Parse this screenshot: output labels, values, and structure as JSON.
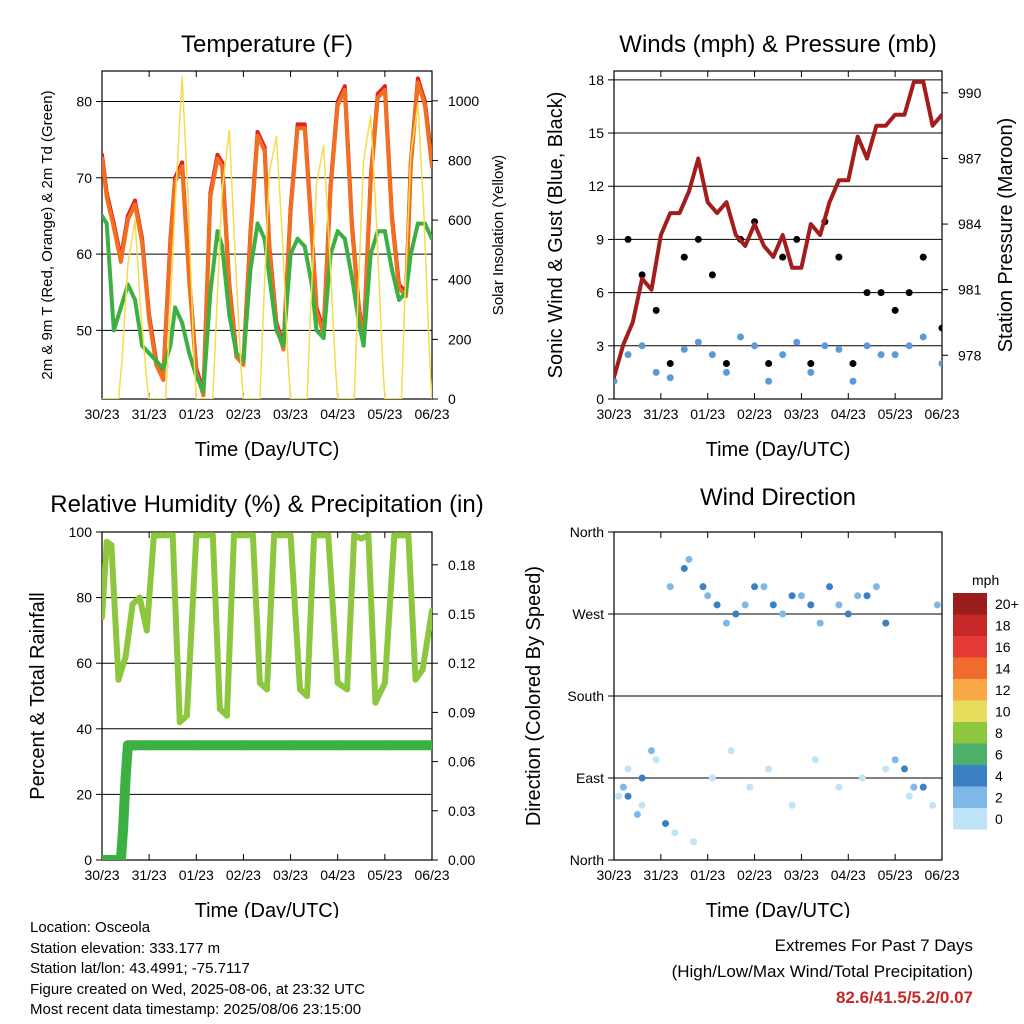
{
  "chart_data": [
    {
      "type": "line",
      "title": "Temperature (F)",
      "xlabel": "Time (Day/UTC)",
      "ylabel": "2m & 9m T (Red, Orange) & 2m Td (Green)",
      "ylabel_right": "Solar Insolation (Yellow)",
      "x_ticks": [
        "30/23",
        "31/23",
        "01/23",
        "02/23",
        "03/23",
        "04/23",
        "05/23",
        "06/23"
      ],
      "ylim": [
        41,
        84
      ],
      "y_ticks": [
        "50",
        "60",
        "70",
        "80"
      ],
      "y_tick_values": [
        50,
        60,
        70,
        80
      ],
      "ylim_right": [
        0,
        1100
      ],
      "y_ticks_right": [
        "0",
        "200",
        "400",
        "600",
        "800",
        "1000"
      ],
      "y_tick_values_right": [
        0,
        200,
        400,
        600,
        800,
        1000
      ],
      "grid": "horizontal",
      "series": [
        {
          "color": "#e02020",
          "x": [
            0,
            0.1,
            0.25,
            0.4,
            0.55,
            0.7,
            0.85,
            1.0,
            1.15,
            1.3,
            1.45,
            1.55,
            1.7,
            1.85,
            2.0,
            2.15,
            2.3,
            2.45,
            2.55,
            2.7,
            2.85,
            3.0,
            3.15,
            3.3,
            3.45,
            3.55,
            3.7,
            3.85,
            4.0,
            4.15,
            4.3,
            4.45,
            4.55,
            4.7,
            4.85,
            5.0,
            5.15,
            5.3,
            5.45,
            5.55,
            5.7,
            5.85,
            6.0,
            6.15,
            6.3,
            6.45,
            6.55,
            6.7,
            6.85,
            7.0
          ],
          "values": [
            73,
            68,
            64,
            59.5,
            65,
            67,
            62,
            52,
            46,
            44,
            62,
            70,
            72,
            57,
            45,
            42,
            68,
            73,
            72,
            56,
            47,
            46,
            63,
            76,
            74,
            61,
            51,
            48,
            66,
            77,
            77,
            63,
            53,
            50,
            69,
            80,
            82,
            64,
            53,
            49,
            70,
            81,
            82,
            65,
            56,
            55,
            72,
            83,
            80,
            72
          ]
        },
        {
          "color": "#f07020",
          "x": [
            0,
            0.1,
            0.25,
            0.4,
            0.55,
            0.7,
            0.85,
            1.0,
            1.15,
            1.3,
            1.45,
            1.55,
            1.7,
            1.85,
            2.0,
            2.15,
            2.3,
            2.45,
            2.55,
            2.7,
            2.85,
            3.0,
            3.15,
            3.3,
            3.45,
            3.55,
            3.7,
            3.85,
            4.0,
            4.15,
            4.3,
            4.45,
            4.55,
            4.7,
            4.85,
            5.0,
            5.15,
            5.3,
            5.45,
            5.55,
            5.7,
            5.85,
            6.0,
            6.15,
            6.3,
            6.45,
            6.55,
            6.7,
            6.85,
            7.0
          ],
          "values": [
            72.5,
            67.5,
            63.5,
            59,
            64.5,
            66.5,
            61.5,
            51.5,
            45.5,
            43.5,
            61.5,
            69.5,
            71.5,
            56.5,
            44.5,
            41.5,
            67.5,
            72.5,
            71.5,
            55.5,
            46.5,
            45.5,
            62.5,
            75.5,
            73.5,
            60.5,
            50.5,
            47.5,
            65.5,
            76.5,
            76.5,
            62.5,
            52.5,
            49.5,
            68.5,
            79.5,
            81.5,
            63.5,
            52.5,
            48.5,
            69.5,
            80.5,
            81.5,
            64.5,
            55.5,
            54.5,
            71.5,
            82.5,
            79.5,
            71.5
          ]
        },
        {
          "color": "#3cb043",
          "x": [
            0,
            0.1,
            0.25,
            0.4,
            0.55,
            0.7,
            0.85,
            1.0,
            1.15,
            1.3,
            1.45,
            1.55,
            1.7,
            1.85,
            2.0,
            2.15,
            2.3,
            2.45,
            2.55,
            2.7,
            2.85,
            3.0,
            3.15,
            3.3,
            3.45,
            3.55,
            3.7,
            3.85,
            4.0,
            4.15,
            4.3,
            4.45,
            4.55,
            4.7,
            4.85,
            5.0,
            5.15,
            5.3,
            5.45,
            5.55,
            5.7,
            5.85,
            6.0,
            6.15,
            6.3,
            6.45,
            6.55,
            6.7,
            6.85,
            7.0
          ],
          "values": [
            65,
            64,
            50,
            53,
            56,
            54,
            48,
            47,
            46,
            45,
            48,
            53,
            51,
            47,
            44,
            42,
            55,
            63,
            61,
            52,
            47,
            46,
            58,
            64,
            62,
            57,
            50,
            48,
            60,
            62,
            61,
            56,
            50,
            49,
            60,
            63,
            62,
            57,
            51,
            48,
            60,
            63,
            63,
            58,
            54,
            55,
            60,
            64,
            64,
            62
          ]
        },
        {
          "color": "#f4dc4c",
          "axis": "right",
          "x": [
            0,
            0.35,
            0.42,
            0.55,
            0.7,
            0.82,
            0.95,
            1.0,
            1.35,
            1.42,
            1.55,
            1.7,
            1.82,
            1.95,
            2.0,
            2.35,
            2.42,
            2.55,
            2.7,
            2.82,
            2.95,
            3.0,
            3.35,
            3.42,
            3.55,
            3.7,
            3.82,
            3.95,
            4.0,
            4.35,
            4.42,
            4.55,
            4.7,
            4.82,
            4.95,
            5.0,
            5.35,
            5.42,
            5.55,
            5.7,
            5.82,
            5.95,
            6.0,
            6.35,
            6.42,
            6.55,
            6.7,
            6.82,
            6.95,
            7.0
          ],
          "values": [
            0,
            0,
            120,
            450,
            600,
            300,
            60,
            0,
            0,
            200,
            650,
            1080,
            700,
            150,
            0,
            0,
            250,
            700,
            900,
            500,
            100,
            0,
            0,
            280,
            760,
            880,
            560,
            120,
            0,
            0,
            280,
            720,
            850,
            520,
            110,
            0,
            0,
            300,
            800,
            950,
            600,
            130,
            0,
            0,
            320,
            820,
            990,
            650,
            140,
            0
          ]
        }
      ]
    },
    {
      "type": "scatter",
      "title": "Winds (mph) & Pressure (mb)",
      "xlabel": "Time (Day/UTC)",
      "ylabel": "Sonic Wind & Gust (Blue, Black)",
      "ylabel_right": "Station Pressure (Maroon)",
      "x_ticks": [
        "30/23",
        "31/23",
        "01/23",
        "02/23",
        "03/23",
        "04/23",
        "05/23",
        "06/23"
      ],
      "ylim": [
        0,
        18.5
      ],
      "y_ticks": [
        "0",
        "3",
        "6",
        "9",
        "12",
        "15",
        "18"
      ],
      "y_tick_values": [
        0,
        3,
        6,
        9,
        12,
        15,
        18
      ],
      "ylim_right": [
        976,
        991
      ],
      "y_ticks_right": [
        "978",
        "981",
        "984",
        "987",
        "990"
      ],
      "y_tick_values_right": [
        978,
        981,
        984,
        987,
        990
      ],
      "grid": "horizontal",
      "series": [
        {
          "color": "#5b9bd5",
          "x": [
            0,
            0.3,
            0.6,
            0.9,
            1.2,
            1.5,
            1.8,
            2.1,
            2.4,
            2.7,
            3.0,
            3.3,
            3.6,
            3.9,
            4.2,
            4.5,
            4.8,
            5.1,
            5.4,
            5.7,
            6.0,
            6.3,
            6.6,
            7.0
          ],
          "values": [
            1,
            2.5,
            3,
            1.5,
            1.2,
            2.8,
            3.2,
            2.5,
            1.5,
            3.5,
            3,
            1,
            2.5,
            3.2,
            1.5,
            3,
            2.8,
            1,
            3,
            2.5,
            2.5,
            3,
            3.5,
            2
          ]
        },
        {
          "color": "#000000",
          "x": [
            0,
            0.3,
            0.6,
            0.9,
            1.2,
            1.5,
            1.8,
            2.1,
            2.4,
            2.7,
            3.0,
            3.3,
            3.6,
            3.9,
            4.2,
            4.5,
            4.8,
            5.1,
            5.4,
            5.7,
            6.0,
            6.3,
            6.6,
            7.0
          ],
          "values": [
            1.5,
            9,
            7,
            5,
            2,
            8,
            9,
            7,
            2,
            9,
            10,
            2,
            8,
            9,
            2,
            10,
            8,
            2,
            6,
            6,
            5,
            6,
            8,
            4
          ]
        },
        {
          "color": "#a31d1d",
          "axis": "right",
          "x": [
            0,
            0.2,
            0.4,
            0.6,
            0.8,
            1.0,
            1.2,
            1.4,
            1.6,
            1.8,
            2.0,
            2.2,
            2.4,
            2.6,
            2.8,
            3.0,
            3.2,
            3.4,
            3.6,
            3.8,
            4.0,
            4.2,
            4.4,
            4.6,
            4.8,
            5.0,
            5.2,
            5.4,
            5.6,
            5.8,
            6.0,
            6.2,
            6.4,
            6.6,
            6.8,
            7.0
          ],
          "values": [
            977,
            978.5,
            979.5,
            981.5,
            981,
            983.5,
            984.5,
            984.5,
            985.5,
            987,
            985,
            984.5,
            985,
            983.5,
            983,
            984,
            983,
            982.5,
            983.5,
            982,
            982,
            984,
            983.5,
            985,
            986,
            986,
            988,
            987,
            988.5,
            988.5,
            989,
            989,
            990.5,
            990.5,
            988.5,
            989
          ]
        }
      ]
    },
    {
      "type": "line",
      "title": "Relative Humidity (%) & Precipitation (in)",
      "xlabel": "Time (Day/UTC)",
      "ylabel": "Percent & Total Rainfall",
      "x_ticks": [
        "30/23",
        "31/23",
        "01/23",
        "02/23",
        "03/23",
        "04/23",
        "05/23",
        "06/23"
      ],
      "ylim": [
        0,
        100
      ],
      "y_ticks": [
        "0",
        "20",
        "40",
        "60",
        "80",
        "100"
      ],
      "y_tick_values": [
        0,
        20,
        40,
        60,
        80,
        100
      ],
      "ylim_right": [
        0,
        0.2
      ],
      "y_ticks_right": [
        "0.00",
        "0.03",
        "0.06",
        "0.09",
        "0.12",
        "0.15",
        "0.18"
      ],
      "y_tick_values_right": [
        0,
        0.03,
        0.06,
        0.09,
        0.12,
        0.15,
        0.18
      ],
      "grid": "horizontal",
      "series": [
        {
          "color": "#8dc63f",
          "x": [
            0,
            0.1,
            0.2,
            0.35,
            0.5,
            0.65,
            0.8,
            0.95,
            1.1,
            1.25,
            1.4,
            1.5,
            1.65,
            1.8,
            2.0,
            2.2,
            2.35,
            2.5,
            2.65,
            2.8,
            3.0,
            3.2,
            3.35,
            3.5,
            3.65,
            3.8,
            4.0,
            4.2,
            4.35,
            4.5,
            4.65,
            4.8,
            5.0,
            5.2,
            5.35,
            5.5,
            5.65,
            5.8,
            6.0,
            6.2,
            6.35,
            6.5,
            6.65,
            6.8,
            7.0
          ],
          "values": [
            74,
            97,
            96,
            55,
            62,
            78,
            80,
            70,
            99,
            99,
            99,
            99,
            42,
            44,
            99,
            99,
            99,
            46,
            44,
            99,
            99,
            99,
            54,
            52,
            99,
            99,
            99,
            52,
            50,
            99,
            99,
            99,
            54,
            52,
            99,
            98,
            99,
            48,
            54,
            99,
            99,
            99,
            55,
            58,
            76
          ]
        },
        {
          "color": "#3cb043",
          "axis": "right",
          "x": [
            0,
            0.4,
            0.45,
            0.5,
            0.55,
            0.7,
            1.0,
            2.0,
            3.0,
            4.0,
            5.0,
            6.0,
            7.0
          ],
          "values": [
            0,
            0,
            0.02,
            0.05,
            0.07,
            0.07,
            0.07,
            0.07,
            0.07,
            0.07,
            0.07,
            0.07,
            0.07
          ]
        }
      ]
    },
    {
      "type": "scatter",
      "title": "Wind Direction",
      "xlabel": "Time (Day/UTC)",
      "ylabel": "Direction (Colored By Speed)",
      "x_ticks": [
        "30/23",
        "31/23",
        "01/23",
        "02/23",
        "03/23",
        "04/23",
        "05/23",
        "06/23"
      ],
      "y_ticks": [
        "North",
        "East",
        "South",
        "West",
        "North"
      ],
      "y_tick_values": [
        0,
        90,
        180,
        270,
        360
      ],
      "ylim": [
        0,
        360
      ],
      "grid": "horizontal",
      "legend": {
        "title": "mph",
        "position": "right",
        "labels": [
          "20+",
          "18",
          "16",
          "14",
          "12",
          "10",
          "8",
          "6",
          "4",
          "2",
          "0"
        ],
        "colors": [
          "#9b1c1c",
          "#c62828",
          "#e53935",
          "#f26b2e",
          "#f9a848",
          "#e8dd5a",
          "#8dc63f",
          "#4caf6a",
          "#3b7fc4",
          "#7fb8e6",
          "#bfe3f7"
        ]
      },
      "series": [
        {
          "color": "#bfe3f7",
          "x": [
            0.1,
            0.3,
            0.6,
            0.9,
            1.3,
            1.7,
            2.1,
            2.5,
            2.9,
            3.3,
            3.8,
            4.3,
            4.8,
            5.3,
            5.8,
            6.3,
            6.8
          ],
          "values": [
            70,
            100,
            60,
            110,
            30,
            20,
            90,
            120,
            80,
            100,
            60,
            110,
            80,
            90,
            100,
            70,
            60
          ]
        },
        {
          "color": "#7fb8e6",
          "x": [
            0.2,
            0.5,
            0.8,
            1.2,
            1.6,
            2.0,
            2.4,
            2.8,
            3.2,
            3.6,
            4.0,
            4.4,
            4.8,
            5.2,
            5.6,
            6.0,
            6.4,
            6.9
          ],
          "values": [
            80,
            50,
            120,
            300,
            330,
            290,
            260,
            280,
            300,
            270,
            290,
            260,
            280,
            290,
            300,
            110,
            80,
            280
          ]
        },
        {
          "color": "#3b7fc4",
          "x": [
            0.3,
            0.6,
            1.1,
            1.5,
            1.9,
            2.2,
            2.6,
            3.0,
            3.4,
            3.8,
            4.2,
            4.6,
            5.0,
            5.4,
            5.8,
            6.2,
            6.6
          ],
          "values": [
            70,
            90,
            40,
            320,
            300,
            280,
            270,
            300,
            280,
            290,
            280,
            300,
            270,
            290,
            260,
            100,
            80
          ]
        }
      ]
    }
  ],
  "info": {
    "location": "Location: Osceola",
    "elevation": "Station elevation: 333.177 m",
    "latlon": "Station lat/lon: 43.4991; -75.7117",
    "created": "Figure created on Wed, 2025-08-06, at 23:32 UTC",
    "timestamp": "Most recent data timestamp: 2025/08/06 23:15:00"
  },
  "extremes": {
    "title": "Extremes For Past 7 Days",
    "subtitle": "(High/Low/Max Wind/Total Precipitation)",
    "values": "82.6/41.5/5.2/0.07"
  }
}
